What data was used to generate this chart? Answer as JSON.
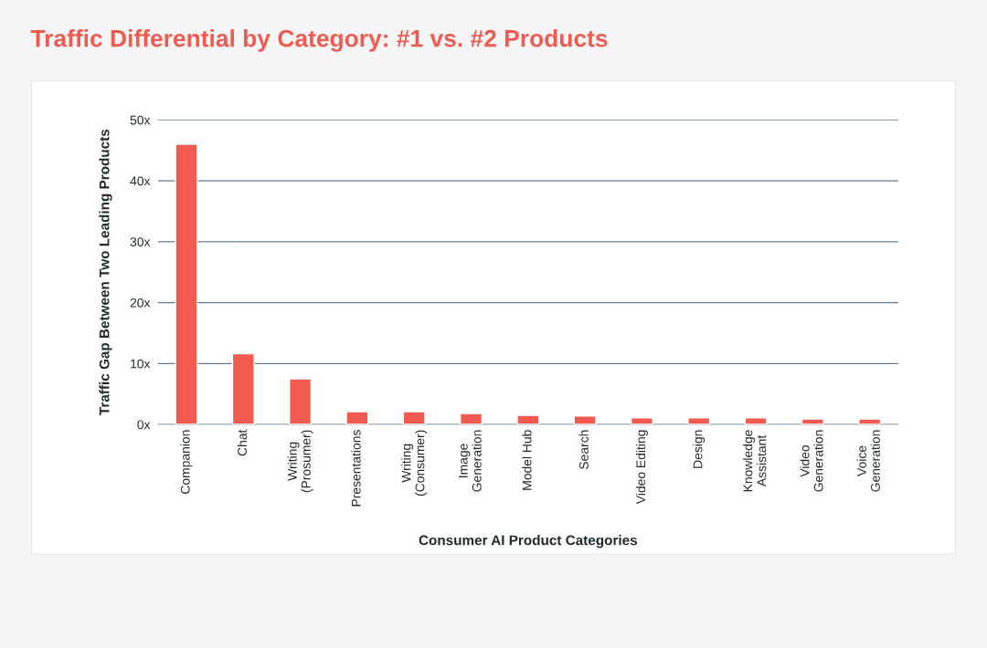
{
  "chart_data": {
    "type": "bar",
    "title": "Traffic Differential by Category: #1 vs. #2 Products",
    "xlabel": "Consumer AI Product Categories",
    "ylabel": "Traffic Gap Between Two Leading Products",
    "categories": [
      "Companion",
      "Chat",
      "Writing\n(Prosumer)",
      "Presentations",
      "Writing\n(Consumer)",
      "Image\nGeneration",
      "Model Hub",
      "Search",
      "Video Editing",
      "Design",
      "Knowledge\nAssistant",
      "Video\nGeneration",
      "Voice\nGeneration"
    ],
    "values": [
      46,
      11.6,
      7.5,
      2.1,
      2.1,
      1.8,
      1.5,
      1.4,
      1.1,
      1.1,
      1.1,
      0.9,
      0.9
    ],
    "color": "#f2594f",
    "ylim": [
      0,
      50
    ],
    "yticks": [
      {
        "value": 0,
        "label": "0x"
      },
      {
        "value": 10,
        "label": "10x"
      },
      {
        "value": 20,
        "label": "20x"
      },
      {
        "value": 30,
        "label": "30x"
      },
      {
        "value": 40,
        "label": "40x"
      },
      {
        "value": 50,
        "label": "50x"
      }
    ],
    "grid": "y"
  }
}
